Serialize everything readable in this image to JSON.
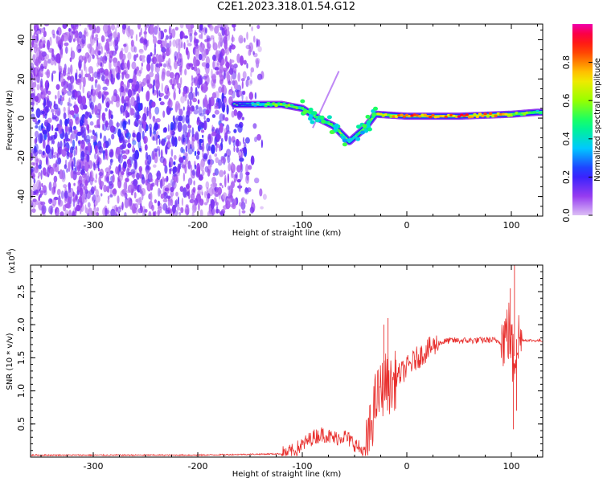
{
  "title": "C2E1.2023.318.01.54.G12",
  "chart_data": [
    {
      "type": "heatmap",
      "title": "C2E1.2023.318.01.54.G12",
      "xlabel": "Height of straight line (km)",
      "ylabel": "Frequency (Hz)",
      "xlim": [
        -360,
        130
      ],
      "ylim": [
        -50,
        48
      ],
      "x_ticks": [
        -300,
        -200,
        -100,
        0,
        100
      ],
      "y_ticks": [
        -40,
        -20,
        0,
        20,
        40
      ],
      "colorbar": {
        "label": "Normalized spectral amplitude",
        "range": [
          0.0,
          1.0
        ],
        "ticks": [
          0.0,
          0.2,
          0.4,
          0.6,
          0.8
        ],
        "colormap": "rainbow (purple-blue-cyan-green-yellow-red-magenta)"
      },
      "ridge": [
        {
          "x": -160,
          "y": 7,
          "amp": 0.25
        },
        {
          "x": -140,
          "y": 7,
          "amp": 0.4
        },
        {
          "x": -120,
          "y": 7,
          "amp": 0.6
        },
        {
          "x": -100,
          "y": 5,
          "amp": 0.5
        },
        {
          "x": -85,
          "y": 0,
          "amp": 0.6
        },
        {
          "x": -70,
          "y": -4,
          "amp": 0.5
        },
        {
          "x": -55,
          "y": -12,
          "amp": 0.45
        },
        {
          "x": -40,
          "y": -5,
          "amp": 0.55
        },
        {
          "x": -30,
          "y": 2,
          "amp": 0.6
        },
        {
          "x": 0,
          "y": 1,
          "amp": 0.85
        },
        {
          "x": 50,
          "y": 1,
          "amp": 0.9
        },
        {
          "x": 100,
          "y": 2,
          "amp": 0.7
        },
        {
          "x": 125,
          "y": 3,
          "amp": 0.5
        }
      ]
    },
    {
      "type": "line",
      "xlabel": "Height of straight line (km)",
      "ylabel": "SNR (10 * v/v)",
      "y_multiplier": "(x10^4)",
      "y_multiplier_base": "(x10",
      "y_multiplier_exp": "4",
      "y_multiplier_close": ")",
      "xlim": [
        -360,
        130
      ],
      "ylim": [
        0,
        2.9
      ],
      "x_ticks": [
        -300,
        -200,
        -100,
        0,
        100
      ],
      "y_ticks": [
        0.5,
        1.0,
        1.5,
        2.0,
        2.5
      ],
      "y_tick_labels": [
        "0.5",
        "1.0",
        "1.5",
        "2.0",
        "2.5"
      ],
      "color": "#e8302e",
      "series": [
        {
          "x": [
            -360,
            -300,
            -200,
            -120,
            -110,
            -100,
            -90,
            -80,
            -70,
            -60,
            -50,
            -40,
            -35,
            -30,
            -25,
            -20,
            -15,
            -10,
            0,
            10,
            20,
            30,
            40,
            60,
            80,
            90,
            95,
            98,
            100,
            102,
            105,
            110,
            120,
            130
          ],
          "y": [
            0.03,
            0.03,
            0.03,
            0.05,
            0.08,
            0.18,
            0.3,
            0.35,
            0.28,
            0.32,
            0.2,
            0.05,
            0.4,
            0.85,
            1.0,
            1.15,
            1.05,
            1.2,
            1.35,
            1.5,
            1.62,
            1.72,
            1.76,
            1.76,
            1.77,
            1.75,
            1.85,
            1.9,
            1.7,
            1.4,
            1.78,
            1.77,
            1.76,
            1.76
          ]
        }
      ]
    }
  ]
}
